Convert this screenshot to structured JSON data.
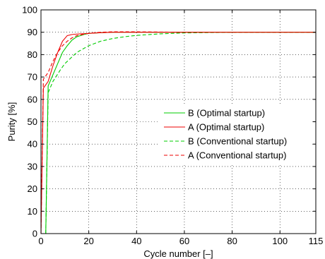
{
  "chart_data": {
    "type": "line",
    "title": "",
    "xlabel": "Cycle number [–]",
    "ylabel": "Purity [%]",
    "xlim": [
      0,
      115
    ],
    "ylim": [
      0,
      100
    ],
    "xticks": [
      0,
      20,
      40,
      60,
      80,
      100,
      115
    ],
    "yticks": [
      0,
      10,
      20,
      30,
      40,
      50,
      60,
      70,
      80,
      90,
      100
    ],
    "grid": true,
    "legend_position": "right-center",
    "series": [
      {
        "name": "B (Optimal startup)",
        "color": "#00cc00",
        "dash": "solid",
        "x": [
          1,
          2,
          3,
          5,
          7,
          9,
          11,
          13,
          15,
          18,
          20,
          25,
          30,
          40,
          60,
          80,
          100,
          115
        ],
        "y": [
          0,
          0,
          66,
          71,
          76,
          81,
          84,
          86.5,
          88,
          89,
          89.5,
          89.8,
          90,
          90,
          90,
          90,
          90,
          90
        ]
      },
      {
        "name": "A (Optimal startup)",
        "color": "#ee0000",
        "dash": "solid",
        "x": [
          0,
          1,
          3,
          5,
          7,
          9,
          11,
          13,
          15,
          20,
          25,
          30,
          40,
          60,
          80,
          100,
          115
        ],
        "y": [
          0,
          65,
          68,
          75,
          81,
          86,
          88.5,
          89,
          89.2,
          89.5,
          89.8,
          90,
          90,
          90,
          90,
          90,
          90
        ]
      },
      {
        "name": "B (Conventional startup)",
        "color": "#00cc00",
        "dash": "dashed",
        "x": [
          2,
          3,
          5,
          8,
          10,
          13,
          15,
          20,
          25,
          30,
          35,
          40,
          50,
          60,
          80,
          100,
          115
        ],
        "y": [
          0,
          63,
          68,
          73,
          76,
          79,
          81,
          84,
          86,
          87.2,
          88,
          88.6,
          89.3,
          89.7,
          90,
          90,
          90
        ]
      },
      {
        "name": "A (Conventional startup)",
        "color": "#ee0000",
        "dash": "dashed",
        "x": [
          0,
          1,
          3,
          5,
          7,
          9,
          11,
          13,
          15,
          20,
          25,
          30,
          40,
          60,
          80,
          100,
          115
        ],
        "y": [
          0,
          69,
          72,
          77,
          81,
          84,
          86,
          87.5,
          88.5,
          89.5,
          90,
          90.2,
          90.2,
          90,
          90,
          90,
          90
        ]
      }
    ]
  }
}
